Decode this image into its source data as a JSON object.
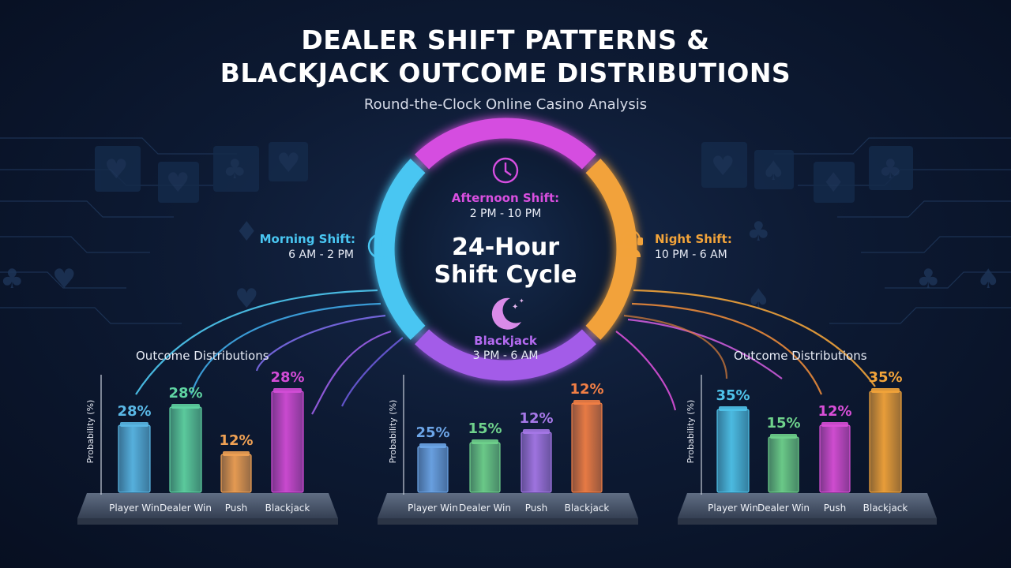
{
  "header": {
    "title_line1": "DEALER SHIFT PATTERNS &",
    "title_line2": "BLACKJACK OUTCOME DISTRIBUTIONS",
    "subtitle": "Round-the-Clock Online Casino Analysis"
  },
  "wheel": {
    "center_line1": "24-Hour",
    "center_line2": "Shift Cycle",
    "shifts": [
      {
        "name": "Morning Shift:",
        "time": "6 AM - 2 PM",
        "color": "#49c6f2"
      },
      {
        "name": "Afternoon Shift:",
        "time": "2 PM - 10 PM",
        "color": "#d94fe0"
      },
      {
        "name": "Night Shift:",
        "time": "10 PM - 6 AM",
        "color": "#f3a43a"
      },
      {
        "name": "Blackjack",
        "time": "3 PM - 6 AM",
        "color": "#b46af0"
      }
    ],
    "icons": [
      "clock-icon",
      "clock-icon",
      "headset-icon",
      "moon-icon"
    ]
  },
  "colors": {
    "player_win": "#58c3e8",
    "dealer_win": "#5fd3a2",
    "push": "#f0a154",
    "blackjack": "#d34cd7"
  },
  "chart_data": [
    {
      "type": "bar",
      "title": "Outcome Distributions",
      "ylabel": "Probability (%)",
      "categories": [
        "Player Win",
        "Dealer Win",
        "Push",
        "Blackjack"
      ],
      "values": [
        28,
        28,
        12,
        28
      ],
      "value_labels": [
        "28%",
        "28%",
        "12%",
        "28%"
      ],
      "colors": [
        "#5ab8e6",
        "#5fd3a2",
        "#f0a154",
        "#d34cd7"
      ]
    },
    {
      "type": "bar",
      "title": "",
      "ylabel": "Probability (%)",
      "categories": [
        "Player Win",
        "Dealer Win",
        "Push",
        "Blackjack"
      ],
      "values": [
        25,
        15,
        12,
        12
      ],
      "value_labels": [
        "25%",
        "15%",
        "12%",
        "12%"
      ],
      "colors": [
        "#6da6e8",
        "#6fd28c",
        "#a678e8",
        "#f27f45"
      ]
    },
    {
      "type": "bar",
      "title": "Outcome Distributions",
      "ylabel": "Probability (%)",
      "categories": [
        "Player Win",
        "Dealer Win",
        "Push",
        "Blackjack"
      ],
      "values": [
        35,
        15,
        12,
        35
      ],
      "value_labels": [
        "35%",
        "15%",
        "12%",
        "35%"
      ],
      "colors": [
        "#4fc3ea",
        "#6fd28c",
        "#d94fd8",
        "#f3a43a"
      ]
    }
  ]
}
